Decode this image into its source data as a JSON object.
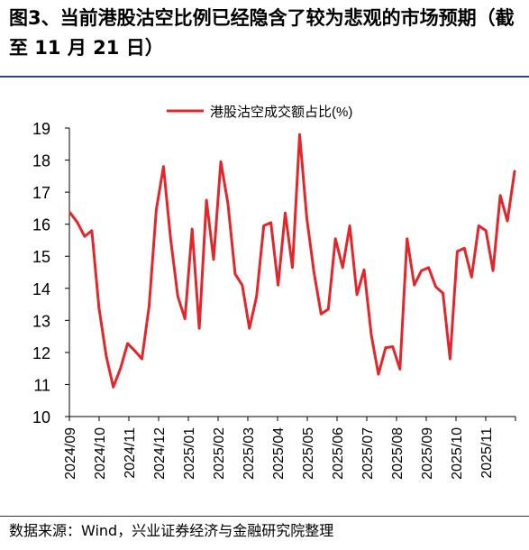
{
  "title": "图3、当前港股沽空比例已经隐含了较为悲观的市场预期（截至 11 月 21 日）",
  "source": "数据来源：Wind，兴业证券经济与金融研究院整理",
  "colors": {
    "series": "#e3262b",
    "title_rule": "#2a4a7a"
  },
  "chart_data": {
    "type": "line",
    "title": "",
    "xlabel": "",
    "ylabel": "",
    "ylim": [
      10,
      19
    ],
    "yticks": [
      10,
      11,
      12,
      13,
      14,
      15,
      16,
      17,
      18,
      19
    ],
    "grid": false,
    "legend_position": "top-center",
    "x_tick_labels": [
      "2024/09",
      "2024/10",
      "2024/11",
      "2024/12",
      "2025/01",
      "2025/02",
      "2025/03",
      "2025/04",
      "2025/05",
      "2025/06",
      "2025/07",
      "2025/08",
      "2025/09",
      "2025/10",
      "2025/11"
    ],
    "series": [
      {
        "name": "港股沽空成交额占比(%)",
        "color": "#e3262b",
        "values": [
          16.35,
          16.05,
          15.62,
          15.8,
          13.4,
          11.9,
          10.92,
          11.5,
          12.28,
          12.05,
          11.8,
          13.45,
          16.45,
          17.8,
          15.55,
          13.75,
          13.05,
          15.85,
          12.75,
          16.75,
          14.9,
          17.95,
          16.65,
          14.45,
          14.1,
          12.75,
          13.75,
          15.95,
          16.05,
          14.1,
          16.35,
          14.65,
          18.8,
          16.2,
          14.5,
          13.2,
          13.35,
          15.55,
          14.65,
          15.95,
          13.8,
          14.58,
          12.55,
          11.32,
          12.15,
          12.18,
          11.48,
          15.55,
          14.1,
          14.55,
          14.65,
          14.05,
          13.85,
          11.8,
          15.15,
          15.25,
          14.35,
          15.95,
          15.8,
          14.55,
          16.9,
          16.1,
          17.65
        ]
      }
    ]
  }
}
